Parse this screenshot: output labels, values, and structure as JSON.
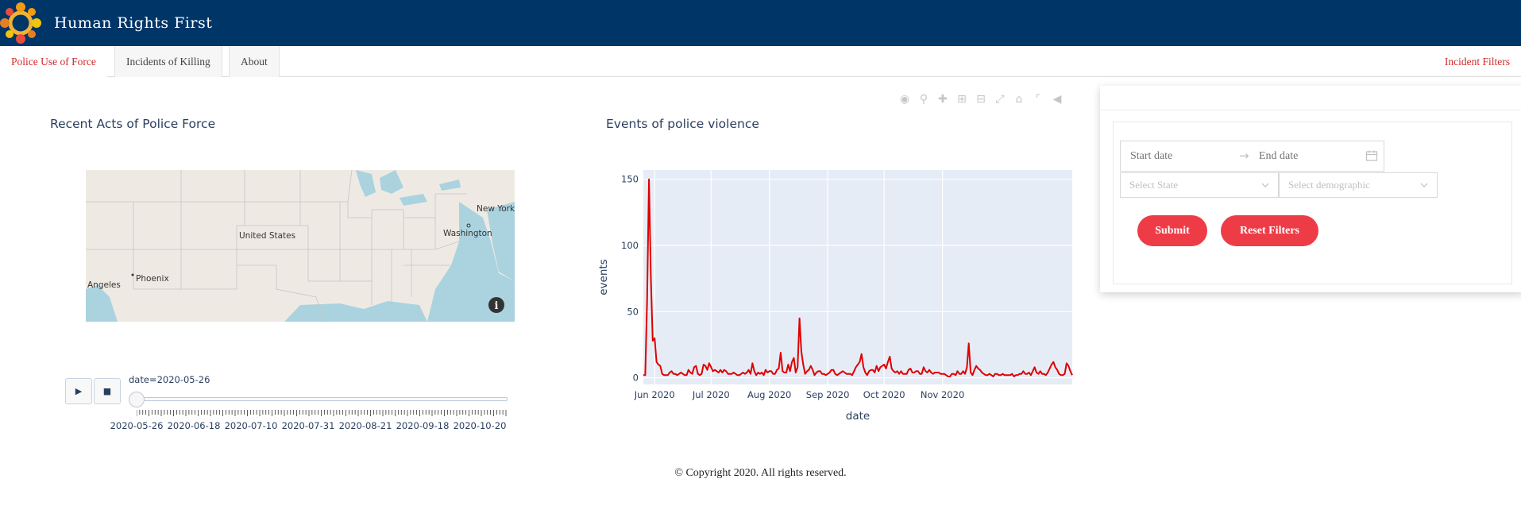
{
  "header": {
    "title": "Human Rights First",
    "logo_icon": "hrf-logo-icon"
  },
  "tabs": [
    {
      "label": "Police Use of Force",
      "active": true
    },
    {
      "label": "Incidents of Killing",
      "active": false
    },
    {
      "label": "About",
      "active": false
    }
  ],
  "filters_link": "Incident Filters",
  "map": {
    "title": "Recent Acts of Police Force",
    "labels": {
      "us": "United States",
      "ny": "New York",
      "dc": "Washington",
      "phx": "Phoenix",
      "la": "Angeles"
    },
    "info_icon": "info-icon"
  },
  "slider": {
    "current_label": "date=2020-05-26",
    "play_label": "▶",
    "stop_label": "■",
    "dates": [
      "2020-05-26",
      "2020-06-18",
      "2020-07-10",
      "2020-07-31",
      "2020-08-21",
      "2020-09-18",
      "2020-10-20"
    ]
  },
  "chart_data": {
    "type": "line",
    "title": "Events of police violence",
    "xlabel": "date",
    "ylabel": "events",
    "xticks": [
      "Jun 2020",
      "Jul 2020",
      "Aug 2020",
      "Sep 2020",
      "Oct 2020",
      "Nov 2020"
    ],
    "yticks": [
      0,
      50,
      100,
      150
    ],
    "ylim": [
      -5,
      157
    ],
    "grid": true,
    "line_color": "#e00000",
    "series": [
      {
        "values": [
          2,
          2,
          58,
          150,
          75,
          28,
          30,
          12,
          10,
          9,
          3,
          2,
          2,
          2,
          4,
          5,
          3,
          3,
          2,
          3,
          4,
          3,
          2,
          2,
          6,
          4,
          3,
          8,
          9,
          3,
          2,
          3,
          10,
          9,
          6,
          11,
          8,
          5,
          6,
          5,
          4,
          6,
          4,
          6,
          5,
          3,
          3,
          3,
          4,
          3,
          2,
          2,
          3,
          4,
          3,
          4,
          6,
          3,
          11,
          5,
          2,
          4,
          3,
          4,
          2,
          6,
          4,
          5,
          5,
          3,
          3,
          6,
          7,
          19,
          5,
          4,
          4,
          10,
          5,
          12,
          15,
          4,
          8,
          45,
          20,
          10,
          3,
          5,
          6,
          9,
          6,
          2,
          4,
          5,
          5,
          3,
          3,
          2,
          3,
          4,
          6,
          6,
          3,
          2,
          3,
          4,
          5,
          4,
          3,
          3,
          3,
          2,
          5,
          8,
          10,
          12,
          18,
          8,
          4,
          2,
          5,
          6,
          6,
          4,
          9,
          5,
          8,
          9,
          10,
          7,
          12,
          16,
          7,
          5,
          4,
          5,
          3,
          5,
          3,
          3,
          3,
          6,
          7,
          4,
          4,
          5,
          5,
          3,
          3,
          8,
          5,
          4,
          6,
          4,
          3,
          4,
          4,
          4,
          3,
          3,
          3,
          2,
          1,
          1,
          3,
          3,
          2,
          5,
          3,
          3,
          5,
          3,
          8,
          26,
          4,
          2,
          6,
          9,
          7,
          6,
          4,
          3,
          2,
          2,
          3,
          2,
          1,
          3,
          3,
          2,
          2,
          3,
          2,
          2,
          2,
          2,
          3,
          1,
          2,
          2,
          3,
          3,
          5,
          3,
          3,
          4,
          2,
          5,
          8,
          4,
          3,
          5,
          3,
          3,
          2,
          4,
          7,
          10,
          12,
          8,
          6,
          3,
          2,
          2,
          3,
          11,
          9,
          5,
          2
        ]
      }
    ]
  },
  "modebar_icons": [
    "camera-icon",
    "zoom-icon",
    "pan-icon",
    "zoom-in-icon",
    "zoom-out-icon",
    "autoscale-icon",
    "home-icon",
    "spike-icon",
    "hover-icon"
  ],
  "filter_panel": {
    "start_placeholder": "Start date",
    "end_placeholder": "End date",
    "arrow": "→",
    "state_placeholder": "Select State",
    "demographic_placeholder": "Select demographic",
    "submit_label": "Submit",
    "reset_label": "Reset Filters"
  },
  "footer": {
    "copyright": "© Copyright 2020. All rights reserved."
  }
}
